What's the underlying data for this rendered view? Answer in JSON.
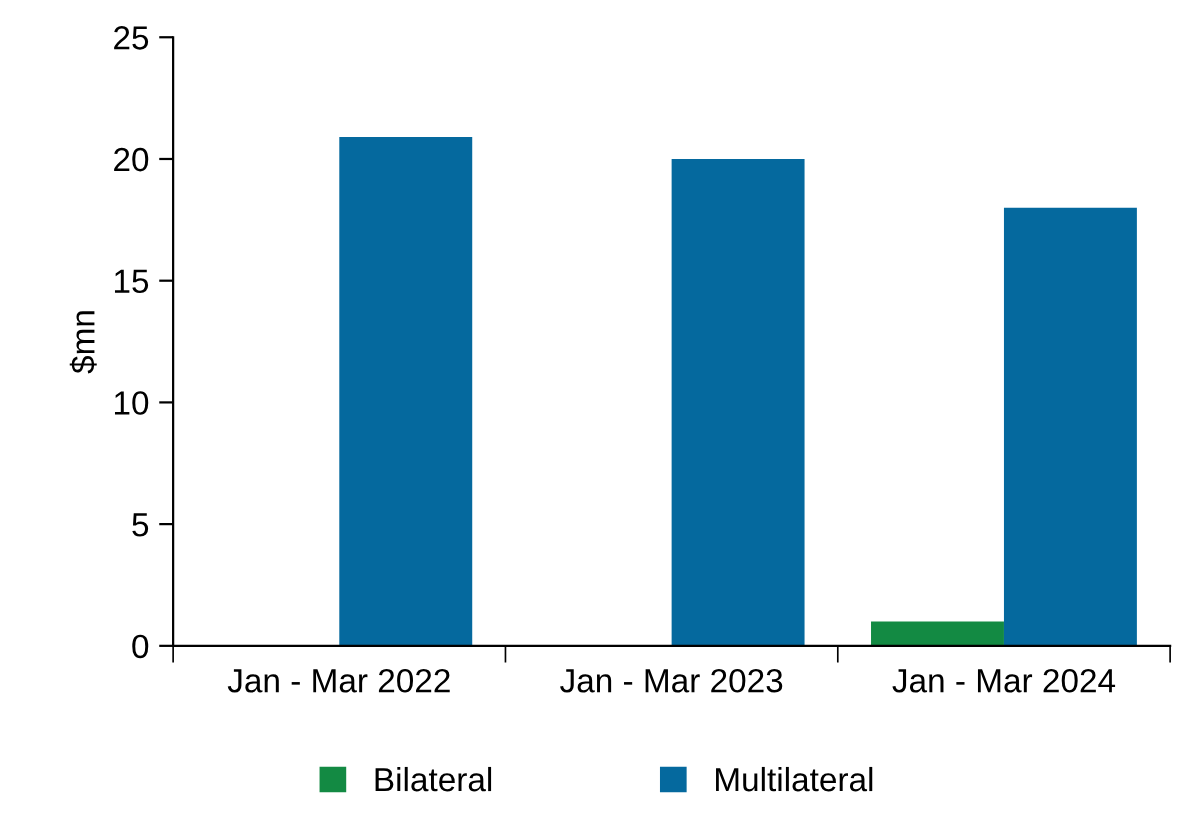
{
  "chart_data": {
    "type": "bar",
    "ylabel": "$mn",
    "categories": [
      "Jan - Mar 2022",
      "Jan - Mar 2023",
      "Jan - Mar 2024"
    ],
    "series": [
      {
        "name": "Bilateral",
        "color": "#138a43",
        "values": [
          0,
          0,
          1.0
        ]
      },
      {
        "name": "Multilateral",
        "color": "#05699e",
        "values": [
          20.9,
          20.0,
          18.0
        ]
      }
    ],
    "ylim": [
      0,
      25
    ],
    "yticks": [
      0,
      5,
      10,
      15,
      20,
      25
    ],
    "grid": false,
    "legend": "bottom"
  }
}
